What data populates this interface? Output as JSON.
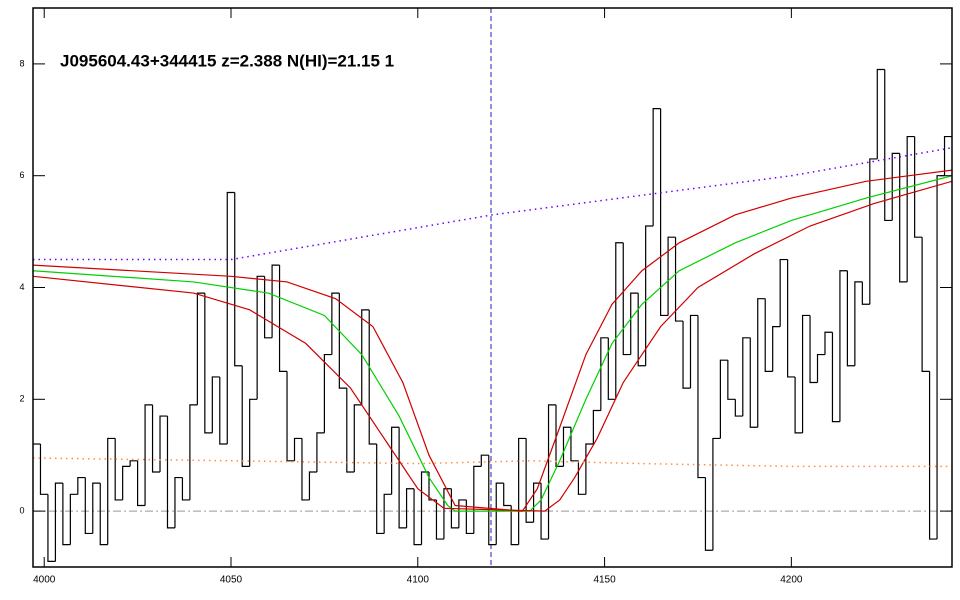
{
  "chart_data": {
    "type": "line",
    "title": "J095604.43+344415 z=2.388 N(HI)=21.15 1",
    "xlim": [
      3997,
      4243
    ],
    "ylim": [
      -1,
      9
    ],
    "xticks": [
      4000,
      4050,
      4100,
      4150,
      4200
    ],
    "yticks": [
      0,
      2,
      4,
      6,
      8
    ],
    "reference_x": 4119.6,
    "reference_y": 0,
    "series": [
      {
        "name": "flux",
        "color": "#000000",
        "style": "step",
        "x": [
          3998,
          4000,
          4002,
          4004,
          4006,
          4008,
          4010,
          4012,
          4014,
          4016,
          4018,
          4020,
          4022,
          4024,
          4026,
          4028,
          4030,
          4032,
          4034,
          4036,
          4038,
          4040,
          4042,
          4044,
          4046,
          4048,
          4050,
          4052,
          4054,
          4056,
          4058,
          4060,
          4062,
          4064,
          4066,
          4068,
          4070,
          4072,
          4074,
          4076,
          4078,
          4080,
          4082,
          4084,
          4086,
          4088,
          4090,
          4092,
          4094,
          4096,
          4098,
          4100,
          4102,
          4104,
          4106,
          4108,
          4110,
          4112,
          4114,
          4116,
          4118,
          4120,
          4122,
          4124,
          4126,
          4128,
          4130,
          4132,
          4134,
          4136,
          4138,
          4140,
          4142,
          4144,
          4146,
          4148,
          4150,
          4152,
          4154,
          4156,
          4158,
          4160,
          4162,
          4164,
          4166,
          4168,
          4170,
          4172,
          4174,
          4176,
          4178,
          4180,
          4182,
          4184,
          4186,
          4188,
          4190,
          4192,
          4194,
          4196,
          4198,
          4200,
          4202,
          4204,
          4206,
          4208,
          4210,
          4212,
          4214,
          4216,
          4218,
          4220,
          4222,
          4224,
          4226,
          4228,
          4230,
          4232,
          4234,
          4236,
          4238,
          4240,
          4242
        ],
        "values": [
          1.2,
          0.3,
          -0.9,
          0.5,
          -0.6,
          0.3,
          0.6,
          -0.4,
          0.5,
          -0.6,
          1.3,
          0.2,
          0.8,
          0.9,
          0.1,
          1.9,
          0.7,
          1.7,
          -0.3,
          0.6,
          0.2,
          1.9,
          3.9,
          1.4,
          2.4,
          1.2,
          5.7,
          2.6,
          0.8,
          2.0,
          4.2,
          3.1,
          4.4,
          2.5,
          0.9,
          1.3,
          0.2,
          0.7,
          1.4,
          2.8,
          3.9,
          2.2,
          0.7,
          1.9,
          3.6,
          1.2,
          -0.4,
          0.3,
          1.5,
          -0.3,
          0.4,
          -0.6,
          0.7,
          0.2,
          -0.5,
          0.4,
          -0.3,
          0.2,
          -0.4,
          0.8,
          1.0,
          -0.6,
          0.5,
          0.1,
          -0.6,
          1.3,
          -0.2,
          0.5,
          -0.5,
          1.9,
          0.8,
          1.5,
          0.9,
          0.3,
          1.2,
          1.8,
          3.1,
          2.0,
          4.8,
          2.8,
          3.9,
          2.6,
          5.1,
          7.2,
          3.5,
          4.9,
          3.4,
          2.2,
          3.5,
          0.6,
          -0.7,
          1.3,
          2.7,
          2.0,
          1.7,
          3.1,
          1.5,
          3.8,
          2.5,
          3.3,
          4.5,
          2.4,
          1.4,
          3.5,
          2.3,
          2.8,
          3.2,
          1.6,
          4.3,
          2.6,
          4.1,
          3.7,
          6.3,
          7.9,
          5.2,
          6.4,
          4.1,
          6.7,
          4.9,
          2.5,
          -0.5,
          6.0,
          6.7
        ]
      },
      {
        "name": "model",
        "color": "#00d000",
        "style": "solid",
        "x": [
          3997,
          4040,
          4060,
          4075,
          4085,
          4095,
          4103,
          4108,
          4110,
          4130,
          4133,
          4138,
          4145,
          4152,
          4160,
          4170,
          4185,
          4200,
          4220,
          4243
        ],
        "values": [
          4.3,
          4.1,
          3.9,
          3.5,
          2.8,
          1.7,
          0.6,
          0.1,
          0,
          0,
          0.2,
          0.9,
          2.0,
          3.0,
          3.7,
          4.3,
          4.8,
          5.2,
          5.6,
          6.0
        ]
      },
      {
        "name": "upper",
        "color": "#d00000",
        "style": "solid",
        "x": [
          3997,
          4050,
          4065,
          4078,
          4088,
          4096,
          4103,
          4110,
          4128,
          4132,
          4138,
          4145,
          4152,
          4160,
          4170,
          4185,
          4200,
          4220,
          4243
        ],
        "values": [
          4.4,
          4.2,
          4.1,
          3.8,
          3.3,
          2.3,
          1.0,
          0.1,
          0,
          0.4,
          1.5,
          2.8,
          3.7,
          4.3,
          4.8,
          5.3,
          5.6,
          5.9,
          6.1
        ]
      },
      {
        "name": "lower",
        "color": "#d00000",
        "style": "solid",
        "x": [
          3997,
          4040,
          4055,
          4070,
          4082,
          4092,
          4100,
          4107,
          4134,
          4138,
          4142,
          4148,
          4155,
          4165,
          4175,
          4190,
          4205,
          4222,
          4243
        ],
        "values": [
          4.2,
          3.9,
          3.6,
          3.0,
          2.2,
          1.2,
          0.4,
          0.05,
          0,
          0.2,
          0.6,
          1.3,
          2.3,
          3.3,
          4.0,
          4.6,
          5.1,
          5.5,
          5.9
        ]
      },
      {
        "name": "continuum",
        "color": "#6a00ff",
        "style": "dotted",
        "x": [
          3997,
          4050,
          4120,
          4200,
          4243
        ],
        "values": [
          4.5,
          4.5,
          5.3,
          6.0,
          6.5
        ]
      },
      {
        "name": "error",
        "color": "#ff8c40",
        "style": "dotted",
        "x": [
          3997,
          4050,
          4100,
          4130,
          4160,
          4200,
          4243
        ],
        "values": [
          0.95,
          0.9,
          0.85,
          0.9,
          0.85,
          0.8,
          0.8
        ]
      }
    ]
  }
}
